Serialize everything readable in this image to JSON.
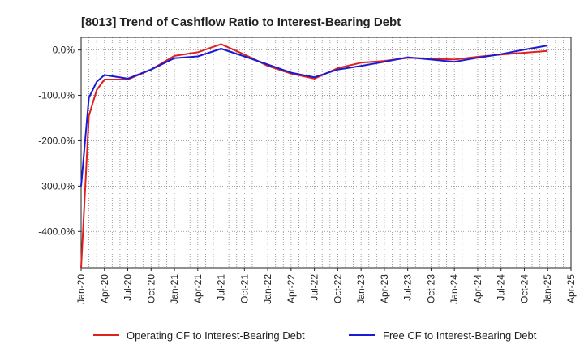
{
  "chart_data": {
    "type": "line",
    "title": "[8013]  Trend of Cashflow Ratio to Interest-Bearing Debt",
    "xlabel": "",
    "ylabel": "",
    "x_tick_labels": [
      "Jan-20",
      "Apr-20",
      "Jul-20",
      "Oct-20",
      "Jan-21",
      "Apr-21",
      "Jul-21",
      "Oct-21",
      "Jan-22",
      "Apr-22",
      "Jul-22",
      "Oct-22",
      "Jan-23",
      "Apr-23",
      "Jul-23",
      "Oct-23",
      "Jan-24",
      "Apr-24",
      "Jul-24",
      "Oct-24",
      "Jan-25",
      "Apr-25"
    ],
    "y_ticks": [
      0,
      -100,
      -200,
      -300,
      -400
    ],
    "y_tick_labels": [
      "0.0%",
      "-100.0%",
      "-200.0%",
      "-300.0%",
      "-400.0%"
    ],
    "xlim": [
      "2020-01",
      "2025-04"
    ],
    "ylim": [
      -480,
      28
    ],
    "grid": true,
    "legend_position": "bottom",
    "series": [
      {
        "name": "Operating CF to Interest-Bearing Debt",
        "color": "#e0201e",
        "points": [
          [
            "2020-01",
            -480
          ],
          [
            "2020-02",
            -145
          ],
          [
            "2020-03",
            -88
          ],
          [
            "2020-04",
            -65
          ],
          [
            "2020-07",
            -65
          ],
          [
            "2020-10",
            -43
          ],
          [
            "2021-01",
            -13
          ],
          [
            "2021-04",
            -5
          ],
          [
            "2021-07",
            13
          ],
          [
            "2021-10",
            -10
          ],
          [
            "2022-01",
            -35
          ],
          [
            "2022-04",
            -52
          ],
          [
            "2022-07",
            -63
          ],
          [
            "2022-10",
            -40
          ],
          [
            "2023-01",
            -28
          ],
          [
            "2023-04",
            -24
          ],
          [
            "2023-07",
            -17
          ],
          [
            "2023-10",
            -19
          ],
          [
            "2024-01",
            -21
          ],
          [
            "2024-04",
            -15
          ],
          [
            "2024-07",
            -10
          ],
          [
            "2024-10",
            -6
          ],
          [
            "2025-01",
            -2
          ]
        ]
      },
      {
        "name": "Free CF to Interest-Bearing Debt",
        "color": "#1a1ad6",
        "points": [
          [
            "2020-01",
            -300
          ],
          [
            "2020-02",
            -105
          ],
          [
            "2020-03",
            -70
          ],
          [
            "2020-04",
            -55
          ],
          [
            "2020-07",
            -63
          ],
          [
            "2020-10",
            -43
          ],
          [
            "2021-01",
            -18
          ],
          [
            "2021-04",
            -14
          ],
          [
            "2021-07",
            3
          ],
          [
            "2021-10",
            -14
          ],
          [
            "2022-01",
            -32
          ],
          [
            "2022-04",
            -50
          ],
          [
            "2022-07",
            -60
          ],
          [
            "2022-10",
            -43
          ],
          [
            "2023-01",
            -35
          ],
          [
            "2023-04",
            -26
          ],
          [
            "2023-07",
            -16
          ],
          [
            "2023-10",
            -21
          ],
          [
            "2024-01",
            -26
          ],
          [
            "2024-04",
            -17
          ],
          [
            "2024-07",
            -9
          ],
          [
            "2024-10",
            1
          ],
          [
            "2025-01",
            10
          ]
        ]
      }
    ]
  }
}
